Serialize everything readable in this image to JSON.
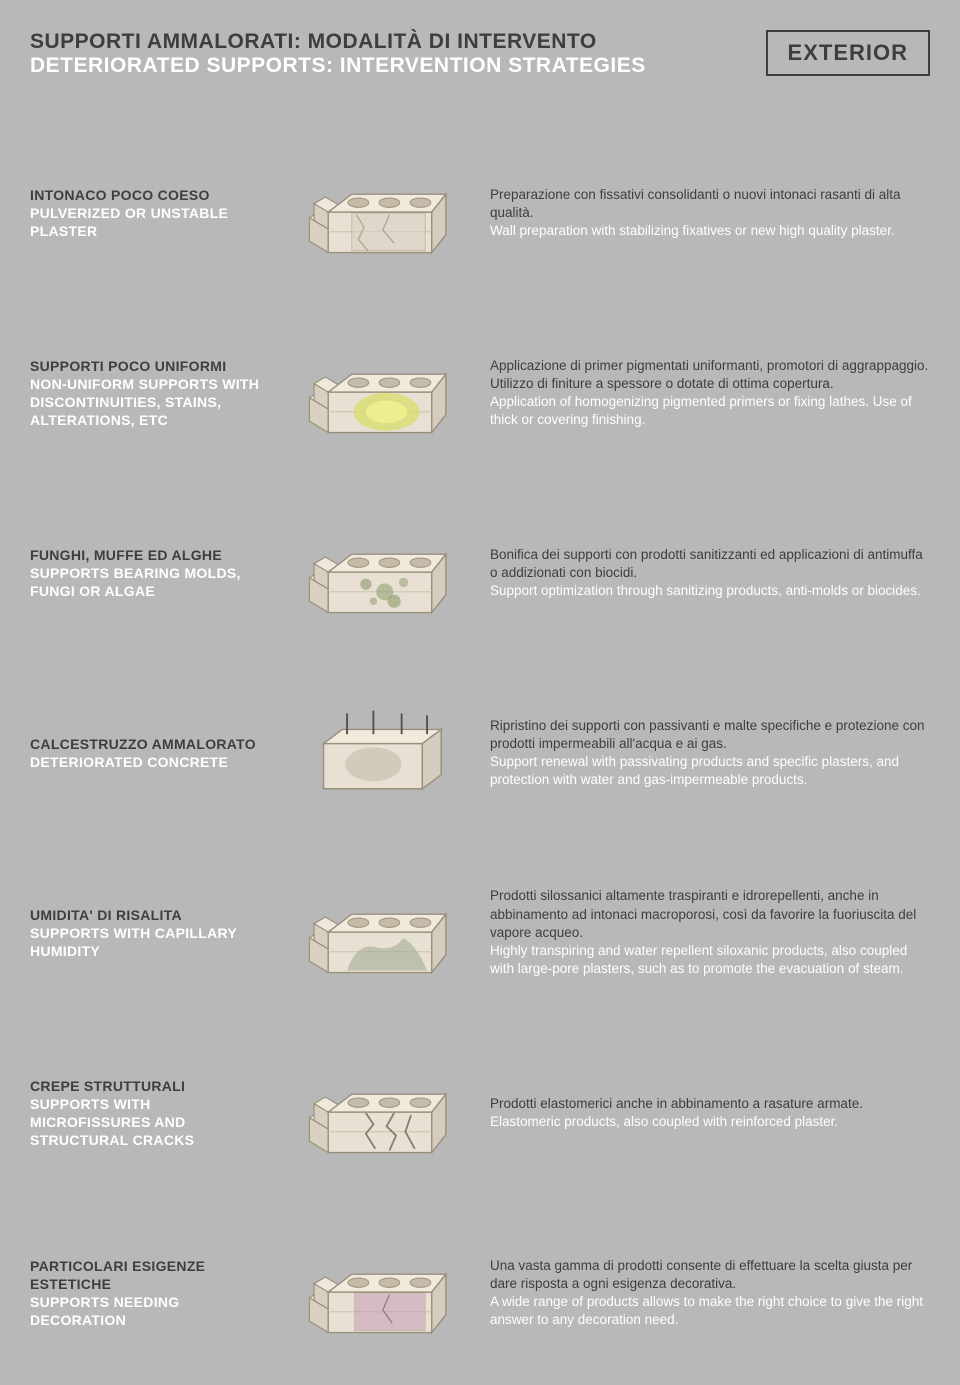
{
  "header": {
    "title_it": "SUPPORTI AMMALORATI: MODALITÀ DI INTERVENTO",
    "title_en": "DETERIORATED SUPPORTS: INTERVENTION STRATEGIES",
    "badge": "EXTERIOR"
  },
  "colors": {
    "background": "#b8b8b8",
    "dark_text": "#3e3e3e",
    "light_text": "#ffffff",
    "block_fill": "#e8e0d3",
    "block_stroke": "#9a8f7a",
    "block_shadow": "#c4bba8"
  },
  "rows": [
    {
      "id": "plaster",
      "label_it": "INTONACO POCO COESO",
      "label_en": "PULVERIZED OR UNSTABLE PLASTER",
      "body_it": "Preparazione con fissativi consolidanti o nuovi intonaci rasanti di alta qualità.",
      "body_en": "Wall preparation with stabilizing fixatives or new high quality plaster.",
      "illus": {
        "type": "block",
        "overlay": "crack",
        "overlay_color": "#d8d0c0"
      }
    },
    {
      "id": "nonuniform",
      "label_it": "SUPPORTI POCO UNIFORMI",
      "label_en": "NON-UNIFORM SUPPORTS WITH DISCONTINUITIES, STAINS, ALTERATIONS, ETC",
      "body_it": "Applicazione di primer pigmentati uniformanti, promotori di aggrappaggio. Utilizzo di finiture a spessore o dotate di ottima copertura.",
      "body_en": "Application of homogenizing pigmented primers or fixing lathes. Use of thick or covering finishing.",
      "illus": {
        "type": "block",
        "overlay": "stain",
        "overlay_color": "#d8dd6a"
      }
    },
    {
      "id": "mold",
      "label_it": "FUNGHI, MUFFE ED ALGHE",
      "label_en": "SUPPORTS BEARING MOLDS, FUNGI OR ALGAE",
      "body_it": "Bonifica dei supporti con prodotti sanitizzanti ed applicazioni di antimuffa o addizionati con biocidi.",
      "body_en": "Support optimization through sanitizing products, anti-molds or biocides.",
      "illus": {
        "type": "block",
        "overlay": "spots",
        "overlay_color": "#8a9a6a"
      }
    },
    {
      "id": "concrete",
      "label_it": "CALCESTRUZZO AMMALORATO",
      "label_en": "DETERIORATED CONCRETE",
      "body_it": "Ripristino dei supporti con passivanti e malte specifiche e protezione con prodotti impermeabili all'acqua e ai gas.",
      "body_en": "Support renewal with passivating products and specific plasters, and protection with water and gas-impermeable products.",
      "illus": {
        "type": "slab",
        "overlay": "rebar",
        "overlay_color": "#a8a090"
      }
    },
    {
      "id": "humidity",
      "label_it": "UMIDITA' DI RISALITA",
      "label_en": "SUPPORTS WITH CAPILLARY HUMIDITY",
      "body_it": "Prodotti silossanici altamente traspiranti e idrorepellenti, anche in abbinamento ad intonaci macroporosi, così da favorire la fuoriuscita del vapore acqueo.",
      "body_en": "Highly transpiring and water repellent siloxanic products, also coupled with large-pore plasters, such as to promote the evacuation of steam.",
      "illus": {
        "type": "block",
        "overlay": "damp",
        "overlay_color": "#9aa890"
      }
    },
    {
      "id": "cracks",
      "label_it": "CREPE STRUTTURALI",
      "label_en": "SUPPORTS WITH MICROFISSURES AND STRUCTURAL CRACKS",
      "body_it": "Prodotti elastomerici anche in abbinamento a rasature armate.",
      "body_en": "Elastomeric products, also coupled with reinforced plaster.",
      "illus": {
        "type": "block",
        "overlay": "bigcrack",
        "overlay_color": "#888070"
      }
    },
    {
      "id": "decor",
      "label_it": "PARTICOLARI ESIGENZE ESTETICHE",
      "label_en": "SUPPORTS NEEDING DECORATION",
      "body_it": "Una vasta gamma di prodotti consente di effettuare la scelta giusta per dare risposta a ogni esigenza decorativa.",
      "body_en": "A wide range of products allows to make the right choice to give the right answer to any decoration need.",
      "illus": {
        "type": "block",
        "overlay": "tinted",
        "overlay_color": "#c090b0"
      }
    }
  ]
}
